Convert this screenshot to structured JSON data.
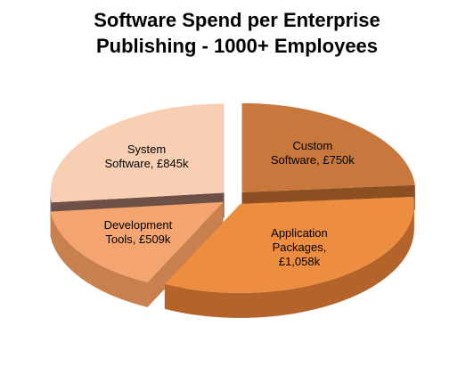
{
  "chart_data": {
    "type": "pie",
    "title": "Software Spend per Enterprise Publishing - 1000+ Employees",
    "values": [
      750,
      1058,
      509,
      845
    ],
    "value_labels": [
      "Custom Software, £750k",
      "Application Packages, £1,058k",
      "Development Tools, £509k",
      "System Software, £845k"
    ],
    "colors": [
      "#c8783c",
      "#ec8d40",
      "#f4a56f",
      "#f9cfb3"
    ],
    "side_colors": [
      "#8c4f22",
      "#b4642a",
      "#c8804f",
      "#6e5047"
    ],
    "exploded": true,
    "three_d": true
  }
}
